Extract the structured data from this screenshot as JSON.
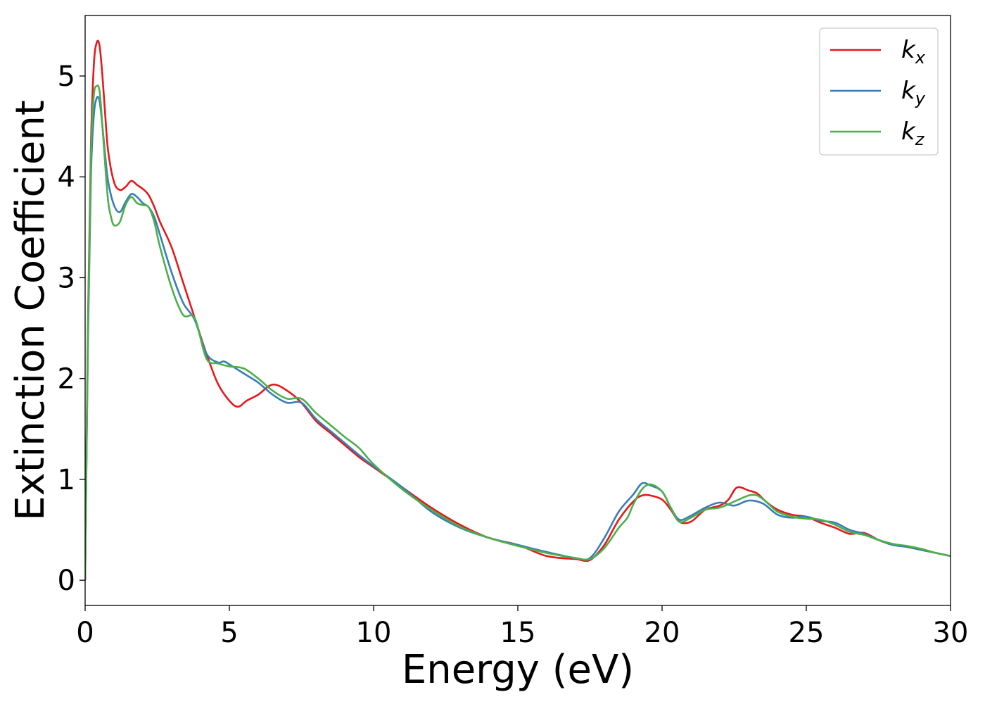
{
  "chart_data": {
    "type": "line",
    "title": "",
    "xlabel": "Energy (eV)",
    "ylabel": "Extinction Coefficient",
    "xlim": [
      0,
      30
    ],
    "ylim": [
      -0.25,
      5.6
    ],
    "xticks": [
      0,
      5,
      10,
      15,
      20,
      25,
      30
    ],
    "xtick_labels": [
      "0",
      "5",
      "10",
      "15",
      "20",
      "25",
      "30"
    ],
    "yticks": [
      0,
      1,
      2,
      3,
      4,
      5
    ],
    "ytick_labels": [
      "0",
      "1",
      "2",
      "3",
      "4",
      "5"
    ],
    "grid": false,
    "legend_position": "top-right",
    "series": [
      {
        "name": "k_x",
        "legend_base": "k",
        "legend_sub": "x",
        "color": "#e41a1c",
        "x": [
          0,
          0.1,
          0.2,
          0.3,
          0.4,
          0.5,
          0.6,
          0.7,
          0.8,
          1.0,
          1.2,
          1.4,
          1.6,
          1.8,
          2.0,
          2.2,
          2.4,
          2.6,
          3.0,
          3.4,
          3.8,
          4.2,
          4.6,
          5.0,
          5.3,
          5.6,
          6.0,
          6.5,
          7.0,
          7.5,
          8.0,
          8.5,
          9.0,
          9.5,
          10.0,
          11.0,
          12.0,
          13.0,
          14.0,
          15.0,
          16.0,
          17.0,
          17.5,
          18.0,
          18.5,
          19.0,
          19.3,
          19.6,
          20.0,
          20.3,
          20.6,
          21.0,
          21.5,
          22.0,
          22.3,
          22.6,
          23.0,
          23.3,
          23.6,
          24.0,
          24.5,
          25.0,
          25.5,
          26.0,
          26.5,
          27.0,
          27.5,
          28.0,
          28.5,
          29.0,
          29.5,
          30.0
        ],
        "y": [
          0.0,
          2.6,
          4.3,
          5.1,
          5.33,
          5.3,
          5.0,
          4.6,
          4.25,
          3.95,
          3.87,
          3.9,
          3.96,
          3.92,
          3.88,
          3.82,
          3.7,
          3.55,
          3.3,
          2.95,
          2.6,
          2.25,
          1.95,
          1.78,
          1.72,
          1.78,
          1.84,
          1.94,
          1.88,
          1.76,
          1.58,
          1.46,
          1.34,
          1.22,
          1.12,
          0.92,
          0.72,
          0.55,
          0.42,
          0.35,
          0.24,
          0.21,
          0.2,
          0.35,
          0.6,
          0.78,
          0.84,
          0.84,
          0.8,
          0.7,
          0.58,
          0.58,
          0.7,
          0.74,
          0.8,
          0.92,
          0.89,
          0.86,
          0.78,
          0.7,
          0.65,
          0.63,
          0.57,
          0.52,
          0.46,
          0.47,
          0.4,
          0.35,
          0.33,
          0.3,
          0.27,
          0.24
        ]
      },
      {
        "name": "k_y",
        "legend_base": "k",
        "legend_sub": "y",
        "color": "#377eb8",
        "x": [
          0,
          0.1,
          0.2,
          0.3,
          0.4,
          0.5,
          0.6,
          0.7,
          0.8,
          1.0,
          1.2,
          1.4,
          1.6,
          1.8,
          2.0,
          2.2,
          2.4,
          2.6,
          3.0,
          3.4,
          3.8,
          4.2,
          4.6,
          4.8,
          5.0,
          5.5,
          6.0,
          6.5,
          7.0,
          7.5,
          8.0,
          8.5,
          9.0,
          9.5,
          10.0,
          11.0,
          12.0,
          13.0,
          14.0,
          15.0,
          16.0,
          17.0,
          17.5,
          18.0,
          18.5,
          19.0,
          19.3,
          19.6,
          20.0,
          20.3,
          20.6,
          21.0,
          21.5,
          22.0,
          22.5,
          23.0,
          23.5,
          24.0,
          24.5,
          25.0,
          25.5,
          26.0,
          26.5,
          27.0,
          27.5,
          28.0,
          28.5,
          29.0,
          29.5,
          30.0
        ],
        "y": [
          0.0,
          2.4,
          4.0,
          4.6,
          4.78,
          4.75,
          4.5,
          4.2,
          3.95,
          3.72,
          3.65,
          3.75,
          3.83,
          3.8,
          3.74,
          3.7,
          3.6,
          3.42,
          3.05,
          2.75,
          2.58,
          2.25,
          2.16,
          2.17,
          2.14,
          2.05,
          1.96,
          1.84,
          1.76,
          1.76,
          1.6,
          1.48,
          1.36,
          1.24,
          1.13,
          0.92,
          0.68,
          0.52,
          0.42,
          0.35,
          0.28,
          0.22,
          0.22,
          0.42,
          0.68,
          0.85,
          0.96,
          0.94,
          0.88,
          0.72,
          0.6,
          0.64,
          0.72,
          0.77,
          0.74,
          0.79,
          0.76,
          0.65,
          0.62,
          0.63,
          0.59,
          0.57,
          0.5,
          0.46,
          0.4,
          0.35,
          0.33,
          0.3,
          0.27,
          0.24
        ]
      },
      {
        "name": "k_z",
        "legend_base": "k",
        "legend_sub": "z",
        "color": "#4daf4a",
        "x": [
          0,
          0.1,
          0.2,
          0.3,
          0.4,
          0.5,
          0.6,
          0.7,
          0.8,
          0.9,
          1.0,
          1.2,
          1.4,
          1.6,
          1.8,
          2.0,
          2.2,
          2.4,
          2.6,
          3.0,
          3.4,
          3.8,
          4.2,
          4.6,
          5.0,
          5.5,
          6.0,
          6.5,
          7.0,
          7.5,
          8.0,
          8.5,
          9.0,
          9.5,
          10.0,
          11.0,
          12.0,
          13.0,
          14.0,
          15.0,
          16.0,
          17.0,
          17.5,
          18.0,
          18.5,
          18.8,
          19.0,
          19.3,
          19.6,
          20.0,
          20.3,
          20.6,
          21.0,
          21.5,
          22.0,
          22.5,
          23.0,
          23.3,
          23.6,
          24.0,
          24.5,
          25.0,
          25.5,
          26.0,
          26.5,
          27.0,
          27.5,
          28.0,
          28.5,
          29.0,
          29.5,
          30.0
        ],
        "y": [
          0.0,
          2.5,
          4.2,
          4.8,
          4.9,
          4.85,
          4.5,
          4.1,
          3.75,
          3.6,
          3.52,
          3.55,
          3.72,
          3.8,
          3.74,
          3.72,
          3.7,
          3.55,
          3.3,
          2.9,
          2.63,
          2.6,
          2.2,
          2.15,
          2.12,
          2.1,
          2.0,
          1.88,
          1.8,
          1.8,
          1.66,
          1.54,
          1.42,
          1.31,
          1.15,
          0.9,
          0.7,
          0.53,
          0.42,
          0.34,
          0.27,
          0.22,
          0.21,
          0.32,
          0.52,
          0.62,
          0.75,
          0.9,
          0.95,
          0.88,
          0.72,
          0.58,
          0.62,
          0.7,
          0.72,
          0.78,
          0.84,
          0.84,
          0.78,
          0.68,
          0.63,
          0.61,
          0.6,
          0.55,
          0.48,
          0.45,
          0.4,
          0.36,
          0.34,
          0.31,
          0.27,
          0.24
        ]
      }
    ]
  }
}
